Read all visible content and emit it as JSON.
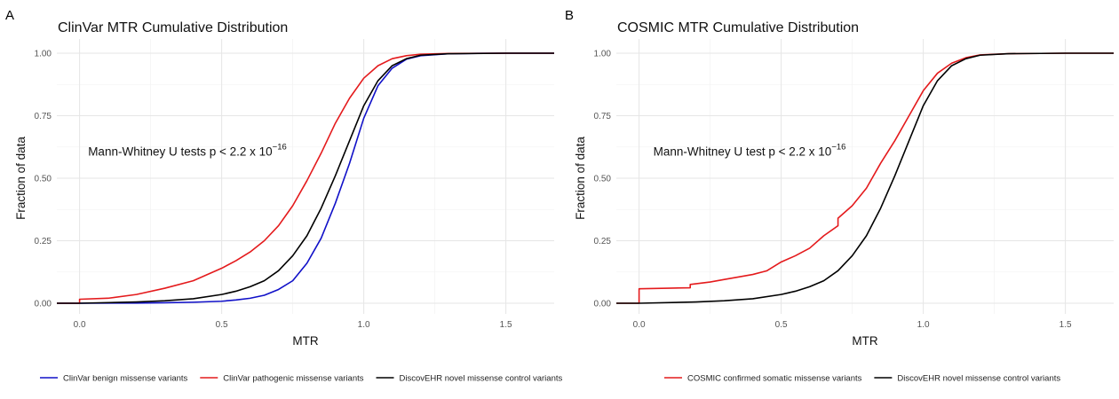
{
  "colors": {
    "benign": "#1010c8",
    "pathogenic": "#e41a1c",
    "control": "#000000",
    "cosmic": "#e41a1c"
  },
  "chart_data": [
    {
      "panel": "A",
      "type": "line",
      "title": "ClinVar MTR Cumulative Distribution",
      "xlabel": "MTR",
      "ylabel": "Fraction of data",
      "xlim": [
        -0.08,
        1.67
      ],
      "ylim": [
        0,
        1
      ],
      "x_ticks": [
        "0.0",
        "0.5",
        "1.0",
        "1.5"
      ],
      "y_ticks": [
        "0.00",
        "0.25",
        "0.50",
        "0.75",
        "1.00"
      ],
      "grid": true,
      "legend_position": "bottom",
      "annotation": {
        "text": "Mann-Whitney U tests p < 2.2 x 10",
        "superscript": "−16",
        "x": 0.03,
        "y": 0.59
      },
      "series": [
        {
          "name": "ClinVar benign missense variants",
          "color_key": "benign",
          "points": [
            [
              -0.08,
              0
            ],
            [
              0.0,
              0
            ],
            [
              0.2,
              0.0008
            ],
            [
              0.3,
              0.002
            ],
            [
              0.4,
              0.004
            ],
            [
              0.5,
              0.008
            ],
            [
              0.55,
              0.013
            ],
            [
              0.6,
              0.02
            ],
            [
              0.65,
              0.032
            ],
            [
              0.7,
              0.055
            ],
            [
              0.75,
              0.09
            ],
            [
              0.8,
              0.16
            ],
            [
              0.85,
              0.26
            ],
            [
              0.9,
              0.4
            ],
            [
              0.95,
              0.56
            ],
            [
              1.0,
              0.74
            ],
            [
              1.05,
              0.87
            ],
            [
              1.1,
              0.94
            ],
            [
              1.15,
              0.976
            ],
            [
              1.2,
              0.99
            ],
            [
              1.3,
              0.998
            ],
            [
              1.4,
              0.9995
            ],
            [
              1.5,
              1.0
            ],
            [
              1.67,
              1.0
            ]
          ]
        },
        {
          "name": "ClinVar pathogenic missense variants",
          "color_key": "pathogenic",
          "points": [
            [
              -0.08,
              0
            ],
            [
              0.0,
              0
            ],
            [
              0.0,
              0.016
            ],
            [
              0.1,
              0.02
            ],
            [
              0.2,
              0.035
            ],
            [
              0.3,
              0.06
            ],
            [
              0.4,
              0.09
            ],
            [
              0.5,
              0.14
            ],
            [
              0.55,
              0.17
            ],
            [
              0.6,
              0.205
            ],
            [
              0.65,
              0.25
            ],
            [
              0.7,
              0.31
            ],
            [
              0.75,
              0.39
            ],
            [
              0.8,
              0.49
            ],
            [
              0.85,
              0.6
            ],
            [
              0.9,
              0.72
            ],
            [
              0.95,
              0.82
            ],
            [
              1.0,
              0.9
            ],
            [
              1.05,
              0.95
            ],
            [
              1.1,
              0.978
            ],
            [
              1.15,
              0.99
            ],
            [
              1.2,
              0.996
            ],
            [
              1.3,
              0.999
            ],
            [
              1.5,
              1.0
            ],
            [
              1.67,
              1.0
            ]
          ]
        },
        {
          "name": "DiscovEHR novel missense control variants",
          "color_key": "control",
          "points": [
            [
              -0.08,
              0
            ],
            [
              0.0,
              0
            ],
            [
              0.2,
              0.005
            ],
            [
              0.3,
              0.01
            ],
            [
              0.4,
              0.018
            ],
            [
              0.5,
              0.035
            ],
            [
              0.55,
              0.048
            ],
            [
              0.6,
              0.066
            ],
            [
              0.65,
              0.09
            ],
            [
              0.7,
              0.13
            ],
            [
              0.75,
              0.19
            ],
            [
              0.8,
              0.27
            ],
            [
              0.85,
              0.38
            ],
            [
              0.9,
              0.51
            ],
            [
              0.95,
              0.65
            ],
            [
              1.0,
              0.79
            ],
            [
              1.05,
              0.89
            ],
            [
              1.1,
              0.95
            ],
            [
              1.15,
              0.978
            ],
            [
              1.2,
              0.992
            ],
            [
              1.3,
              0.998
            ],
            [
              1.5,
              1.0
            ],
            [
              1.67,
              1.0
            ]
          ]
        }
      ]
    },
    {
      "panel": "B",
      "type": "line",
      "title": "COSMIC MTR Cumulative Distribution",
      "xlabel": "MTR",
      "ylabel": "Fraction of data",
      "xlim": [
        -0.08,
        1.67
      ],
      "ylim": [
        0,
        1
      ],
      "x_ticks": [
        "0.0",
        "0.5",
        "1.0",
        "1.5"
      ],
      "y_ticks": [
        "0.00",
        "0.25",
        "0.50",
        "0.75",
        "1.00"
      ],
      "grid": true,
      "legend_position": "bottom",
      "annotation": {
        "text": "Mann-Whitney U test p < 2.2 x 10",
        "superscript": "−16",
        "x": 0.05,
        "y": 0.59
      },
      "series": [
        {
          "name": "COSMIC confirmed somatic missense variants",
          "color_key": "cosmic",
          "points": [
            [
              -0.08,
              0
            ],
            [
              0.0,
              0
            ],
            [
              0.0,
              0.058
            ],
            [
              0.1,
              0.06
            ],
            [
              0.18,
              0.062
            ],
            [
              0.18,
              0.075
            ],
            [
              0.25,
              0.085
            ],
            [
              0.3,
              0.095
            ],
            [
              0.4,
              0.115
            ],
            [
              0.45,
              0.13
            ],
            [
              0.5,
              0.165
            ],
            [
              0.55,
              0.19
            ],
            [
              0.6,
              0.22
            ],
            [
              0.65,
              0.27
            ],
            [
              0.7,
              0.31
            ],
            [
              0.7,
              0.34
            ],
            [
              0.75,
              0.39
            ],
            [
              0.8,
              0.46
            ],
            [
              0.85,
              0.56
            ],
            [
              0.9,
              0.65
            ],
            [
              0.95,
              0.75
            ],
            [
              1.0,
              0.85
            ],
            [
              1.05,
              0.92
            ],
            [
              1.1,
              0.96
            ],
            [
              1.15,
              0.982
            ],
            [
              1.2,
              0.993
            ],
            [
              1.3,
              0.998
            ],
            [
              1.5,
              1.0
            ],
            [
              1.67,
              1.0
            ]
          ]
        },
        {
          "name": "DiscovEHR novel missense control variants",
          "color_key": "control",
          "points": [
            [
              -0.08,
              0
            ],
            [
              0.0,
              0
            ],
            [
              0.2,
              0.005
            ],
            [
              0.3,
              0.01
            ],
            [
              0.4,
              0.018
            ],
            [
              0.5,
              0.035
            ],
            [
              0.55,
              0.048
            ],
            [
              0.6,
              0.066
            ],
            [
              0.65,
              0.09
            ],
            [
              0.7,
              0.13
            ],
            [
              0.75,
              0.19
            ],
            [
              0.8,
              0.27
            ],
            [
              0.85,
              0.38
            ],
            [
              0.9,
              0.51
            ],
            [
              0.95,
              0.65
            ],
            [
              1.0,
              0.79
            ],
            [
              1.05,
              0.89
            ],
            [
              1.1,
              0.95
            ],
            [
              1.15,
              0.978
            ],
            [
              1.2,
              0.992
            ],
            [
              1.3,
              0.998
            ],
            [
              1.5,
              1.0
            ],
            [
              1.67,
              1.0
            ]
          ]
        }
      ]
    }
  ]
}
